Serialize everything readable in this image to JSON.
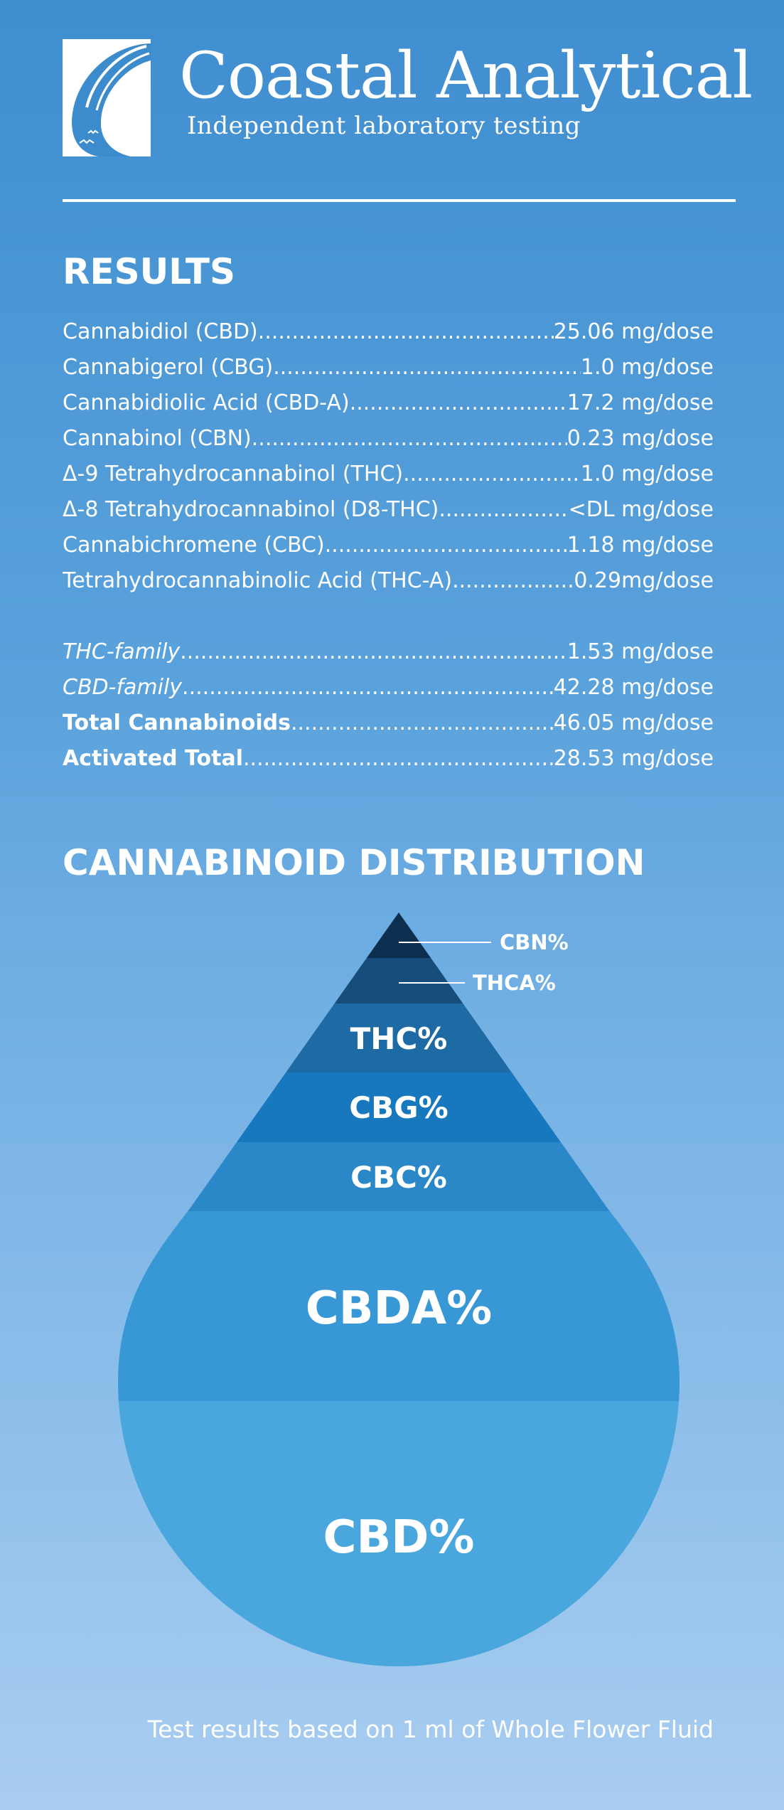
{
  "brand": {
    "title": "Coastal Analytical",
    "subtitle": "Independent laboratory testing",
    "logo_icon": "wave-bird-logo"
  },
  "results": {
    "heading": "RESULTS",
    "rows": [
      {
        "label": "Cannabidiol (CBD)",
        "value": "25.06 mg/dose"
      },
      {
        "label": "Cannabigerol (CBG)",
        "value": "1.0 mg/dose"
      },
      {
        "label": "Cannabidiolic Acid (CBD-A)",
        "value": "17.2 mg/dose"
      },
      {
        "label": "Cannabinol (CBN)",
        "value": "0.23 mg/dose"
      },
      {
        "label": "Δ-9 Tetrahydrocannabinol (THC)",
        "value": "1.0 mg/dose"
      },
      {
        "label": "Δ-8 Tetrahydrocannabinol (D8-THC)",
        "value": "<DL mg/dose"
      },
      {
        "label": "Cannabichromene (CBC)",
        "value": "1.18 mg/dose"
      },
      {
        "label": "Tetrahydrocannabinolic Acid (THC-A)",
        "value": "0.29mg/dose"
      }
    ],
    "totals": [
      {
        "label": "THC-family",
        "value": "1.53 mg/dose",
        "style": "family"
      },
      {
        "label": "CBD-family",
        "value": "42.28 mg/dose",
        "style": "family"
      },
      {
        "label": "Total Cannabinoids",
        "value": "46.05 mg/dose",
        "style": "bold"
      },
      {
        "label": "Activated Total",
        "value": "28.53 mg/dose",
        "style": "bold"
      }
    ]
  },
  "distribution": {
    "heading": "CANNABINOID DISTRIBUTION",
    "layers": [
      {
        "label": "CBN%",
        "color": "#0c2f50",
        "callout": true
      },
      {
        "label": "THCA%",
        "color": "#164d7a",
        "callout": true
      },
      {
        "label": "THC%",
        "color": "#1e6aa4"
      },
      {
        "label": "CBG%",
        "color": "#1878be"
      },
      {
        "label": "CBC%",
        "color": "#2a88c8"
      },
      {
        "label": "CBDA%",
        "color": "#3898d6"
      },
      {
        "label": "CBD%",
        "color": "#4aa7de"
      }
    ]
  },
  "footer": {
    "note": "Test results based on 1 ml of Whole Flower Fluid"
  }
}
